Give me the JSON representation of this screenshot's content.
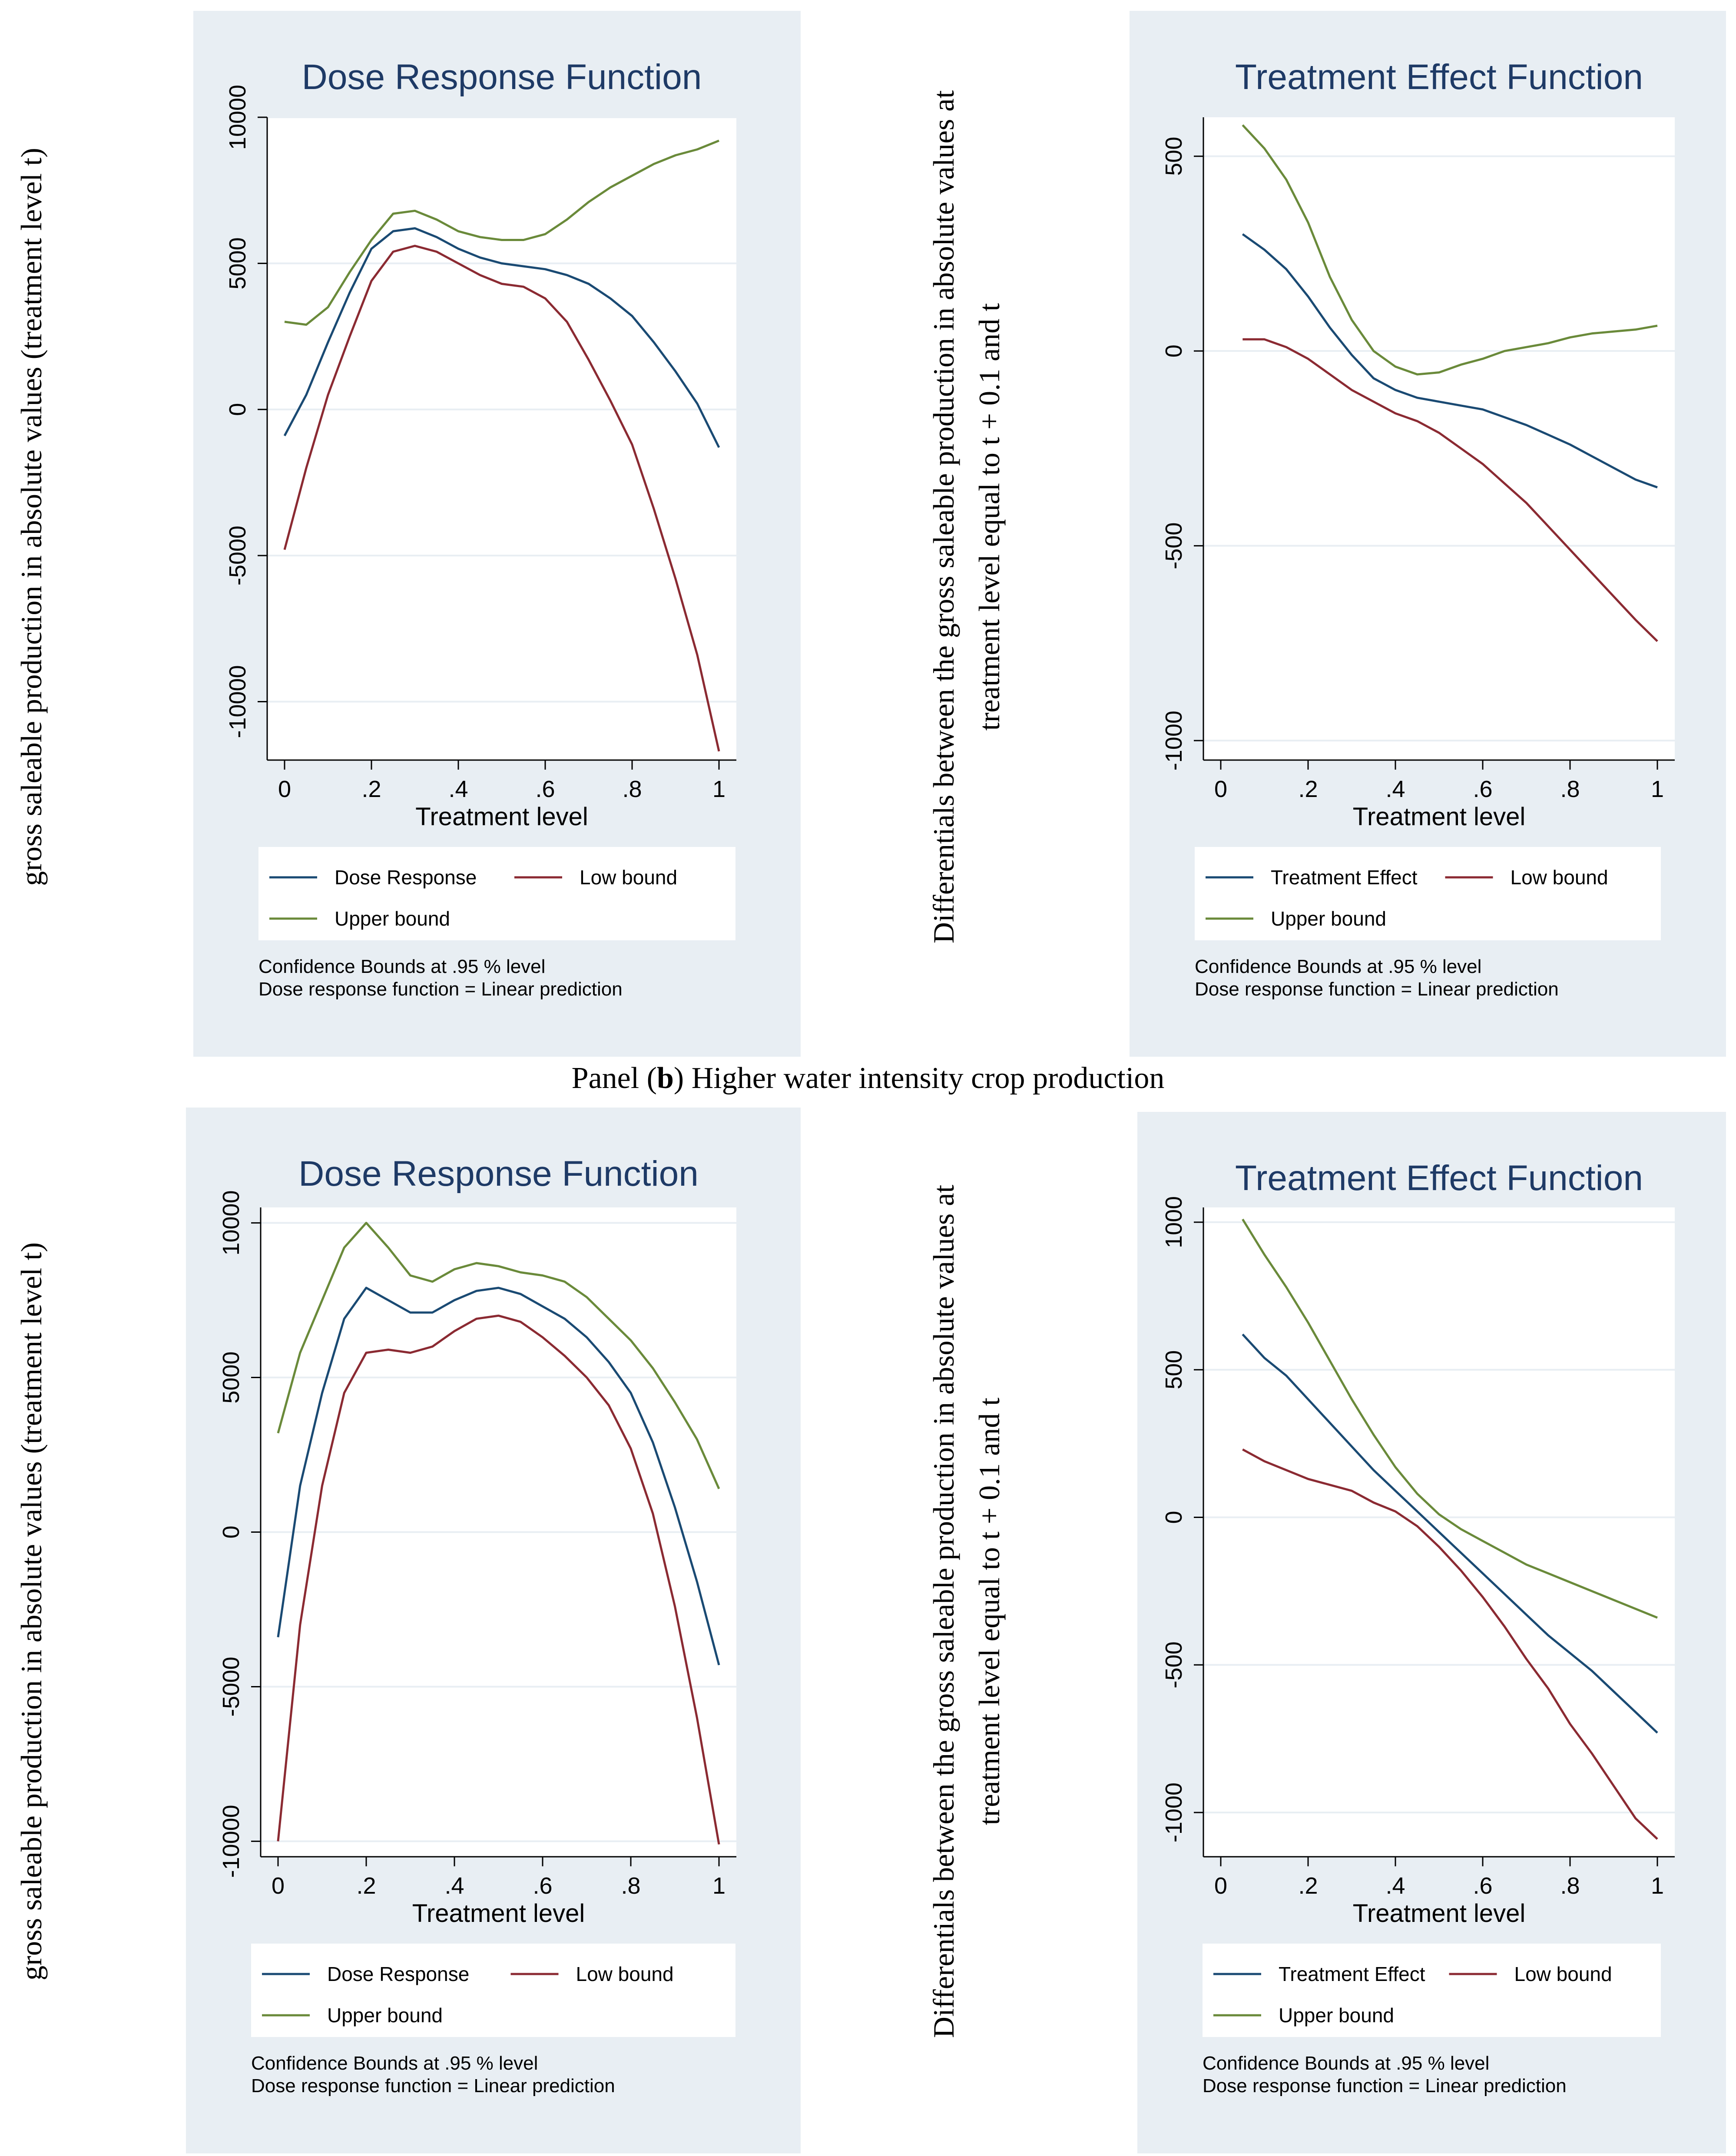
{
  "caption": {
    "prefix": "Panel (",
    "bold": "b",
    "suffix": ") Higher water intensity crop production"
  },
  "y_label_left": "gross saleable production in absolute values (treatment level t)",
  "y_label_right_line1": "Differentials between the gross saleable production in absolute values at",
  "y_label_right_line2": "treatment level equal to t + 0.1 and t",
  "colors": {
    "dose": "#1a4a73",
    "low": "#8b2a32",
    "upper": "#6a8a3a"
  },
  "chart_data": [
    {
      "id": "dose_a",
      "type": "line",
      "title": "Dose Response Function",
      "xlabel": "Treatment level",
      "xlim": [
        0,
        1
      ],
      "ylim": [
        -12000,
        10000
      ],
      "xticks": [
        0,
        0.2,
        0.4,
        0.6,
        0.8,
        1
      ],
      "xtick_labels": [
        "0",
        ".2",
        ".4",
        ".6",
        ".8",
        "1"
      ],
      "yticks": [
        10000,
        5000,
        0,
        -5000,
        -10000
      ],
      "ytick_labels": [
        "10000",
        "5000",
        "0",
        "-5000",
        "-10000"
      ],
      "x": [
        0,
        0.05,
        0.1,
        0.15,
        0.2,
        0.25,
        0.3,
        0.35,
        0.4,
        0.45,
        0.5,
        0.55,
        0.6,
        0.65,
        0.7,
        0.75,
        0.8,
        0.85,
        0.9,
        0.95,
        1
      ],
      "series": [
        {
          "name": "Dose Response",
          "color_key": "dose",
          "values": [
            -900,
            500,
            2300,
            4000,
            5500,
            6100,
            6200,
            5900,
            5500,
            5200,
            5000,
            4900,
            4800,
            4600,
            4300,
            3800,
            3200,
            2300,
            1300,
            200,
            -1300
          ]
        },
        {
          "name": "Low bound",
          "color_key": "low",
          "values": [
            -4800,
            -2000,
            500,
            2500,
            4400,
            5400,
            5600,
            5400,
            5000,
            4600,
            4300,
            4200,
            3800,
            3000,
            1700,
            300,
            -1200,
            -3400,
            -5800,
            -8400,
            -11700
          ]
        },
        {
          "name": "Upper bound",
          "color_key": "upper",
          "values": [
            3000,
            2900,
            3500,
            4700,
            5800,
            6700,
            6800,
            6500,
            6100,
            5900,
            5800,
            5800,
            6000,
            6500,
            7100,
            7600,
            8000,
            8400,
            8700,
            8900,
            9200
          ]
        }
      ],
      "legend": {
        "first": "Dose Response",
        "second": "Low bound",
        "third": "Upper bound"
      },
      "notes": [
        "Confidence Bounds at .95 % level",
        "Dose response function = Linear prediction"
      ]
    },
    {
      "id": "effect_a",
      "type": "line",
      "title": "Treatment Effect Function",
      "xlabel": "Treatment level",
      "xlim": [
        0,
        1
      ],
      "ylim": [
        -1050,
        600
      ],
      "xticks": [
        0,
        0.2,
        0.4,
        0.6,
        0.8,
        1
      ],
      "xtick_labels": [
        "0",
        ".2",
        ".4",
        ".6",
        ".8",
        "1"
      ],
      "yticks": [
        500,
        0,
        -500,
        -1000
      ],
      "ytick_labels": [
        "500",
        "0",
        "-500",
        "-1000"
      ],
      "x": [
        0.05,
        0.1,
        0.15,
        0.2,
        0.25,
        0.3,
        0.35,
        0.4,
        0.45,
        0.5,
        0.55,
        0.6,
        0.65,
        0.7,
        0.75,
        0.8,
        0.85,
        0.9,
        0.95,
        1
      ],
      "series": [
        {
          "name": "Treatment Effect",
          "color_key": "dose",
          "values": [
            300,
            260,
            210,
            140,
            60,
            -10,
            -70,
            -100,
            -120,
            -130,
            -140,
            -150,
            -170,
            -190,
            -215,
            -240,
            -270,
            -300,
            -330,
            -350
          ]
        },
        {
          "name": "Low bound",
          "color_key": "low",
          "values": [
            30,
            30,
            10,
            -20,
            -60,
            -100,
            -130,
            -160,
            -180,
            -210,
            -250,
            -290,
            -340,
            -390,
            -450,
            -510,
            -570,
            -630,
            -690,
            -745
          ]
        },
        {
          "name": "Upper bound",
          "color_key": "upper",
          "values": [
            580,
            520,
            440,
            330,
            190,
            80,
            0,
            -40,
            -60,
            -55,
            -35,
            -20,
            0,
            10,
            20,
            35,
            45,
            50,
            55,
            65
          ]
        }
      ],
      "legend": {
        "first": "Treatment Effect",
        "second": "Low bound",
        "third": "Upper bound"
      },
      "notes": [
        "Confidence Bounds at .95 % level",
        "Dose response function = Linear prediction"
      ]
    },
    {
      "id": "dose_b",
      "type": "line",
      "title": "Dose Response Function",
      "xlabel": "Treatment level",
      "xlim": [
        0,
        1
      ],
      "ylim": [
        -10500,
        10500
      ],
      "xticks": [
        0,
        0.2,
        0.4,
        0.6,
        0.8,
        1
      ],
      "xtick_labels": [
        "0",
        ".2",
        ".4",
        ".6",
        ".8",
        "1"
      ],
      "yticks": [
        10000,
        5000,
        0,
        -5000,
        -10000
      ],
      "ytick_labels": [
        "10000",
        "5000",
        "0",
        "-5000",
        "-10000"
      ],
      "x": [
        0,
        0.05,
        0.1,
        0.15,
        0.2,
        0.25,
        0.3,
        0.35,
        0.4,
        0.45,
        0.5,
        0.55,
        0.6,
        0.65,
        0.7,
        0.75,
        0.8,
        0.85,
        0.9,
        0.95,
        1
      ],
      "series": [
        {
          "name": "Dose Response",
          "color_key": "dose",
          "values": [
            -3400,
            1500,
            4500,
            6900,
            7900,
            7500,
            7100,
            7100,
            7500,
            7800,
            7900,
            7700,
            7300,
            6900,
            6300,
            5500,
            4500,
            2900,
            800,
            -1600,
            -4300
          ]
        },
        {
          "name": "Low bound",
          "color_key": "low",
          "values": [
            -10000,
            -3000,
            1500,
            4500,
            5800,
            5900,
            5800,
            6000,
            6500,
            6900,
            7000,
            6800,
            6300,
            5700,
            5000,
            4100,
            2700,
            600,
            -2400,
            -6000,
            -10100
          ]
        },
        {
          "name": "Upper bound",
          "color_key": "upper",
          "values": [
            3200,
            5800,
            7500,
            9200,
            10000,
            9200,
            8300,
            8100,
            8500,
            8700,
            8600,
            8400,
            8300,
            8100,
            7600,
            6900,
            6200,
            5300,
            4200,
            3000,
            1400
          ]
        }
      ],
      "legend": {
        "first": "Dose Response",
        "second": "Low bound",
        "third": "Upper bound"
      },
      "notes": [
        "Confidence Bounds at .95 % level",
        "Dose response function = Linear prediction"
      ]
    },
    {
      "id": "effect_b",
      "type": "line",
      "title": "Treatment Effect Function",
      "xlabel": "Treatment level",
      "xlim": [
        0,
        1
      ],
      "ylim": [
        -1150,
        1050
      ],
      "xticks": [
        0,
        0.2,
        0.4,
        0.6,
        0.8,
        1
      ],
      "xtick_labels": [
        "0",
        ".2",
        ".4",
        ".6",
        ".8",
        "1"
      ],
      "yticks": [
        1000,
        500,
        0,
        -500,
        -1000
      ],
      "ytick_labels": [
        "1000",
        "500",
        "0",
        "-500",
        "-1000"
      ],
      "x": [
        0.05,
        0.1,
        0.15,
        0.2,
        0.25,
        0.3,
        0.35,
        0.4,
        0.45,
        0.5,
        0.55,
        0.6,
        0.65,
        0.7,
        0.75,
        0.8,
        0.85,
        0.9,
        0.95,
        1
      ],
      "series": [
        {
          "name": "Treatment Effect",
          "color_key": "dose",
          "values": [
            620,
            540,
            480,
            400,
            320,
            240,
            160,
            90,
            20,
            -50,
            -120,
            -190,
            -260,
            -330,
            -400,
            -460,
            -520,
            -590,
            -660,
            -730
          ]
        },
        {
          "name": "Low bound",
          "color_key": "low",
          "values": [
            230,
            190,
            160,
            130,
            110,
            90,
            50,
            20,
            -30,
            -100,
            -180,
            -270,
            -370,
            -480,
            -580,
            -700,
            -800,
            -910,
            -1020,
            -1090
          ]
        },
        {
          "name": "Upper bound",
          "color_key": "upper",
          "values": [
            1010,
            890,
            780,
            660,
            530,
            400,
            280,
            170,
            80,
            10,
            -40,
            -80,
            -120,
            -160,
            -190,
            -220,
            -250,
            -280,
            -310,
            -340
          ]
        }
      ],
      "legend": {
        "first": "Treatment Effect",
        "second": "Low bound",
        "third": "Upper bound"
      },
      "notes": [
        "Confidence Bounds at .95 % level",
        "Dose response function = Linear prediction"
      ]
    }
  ]
}
